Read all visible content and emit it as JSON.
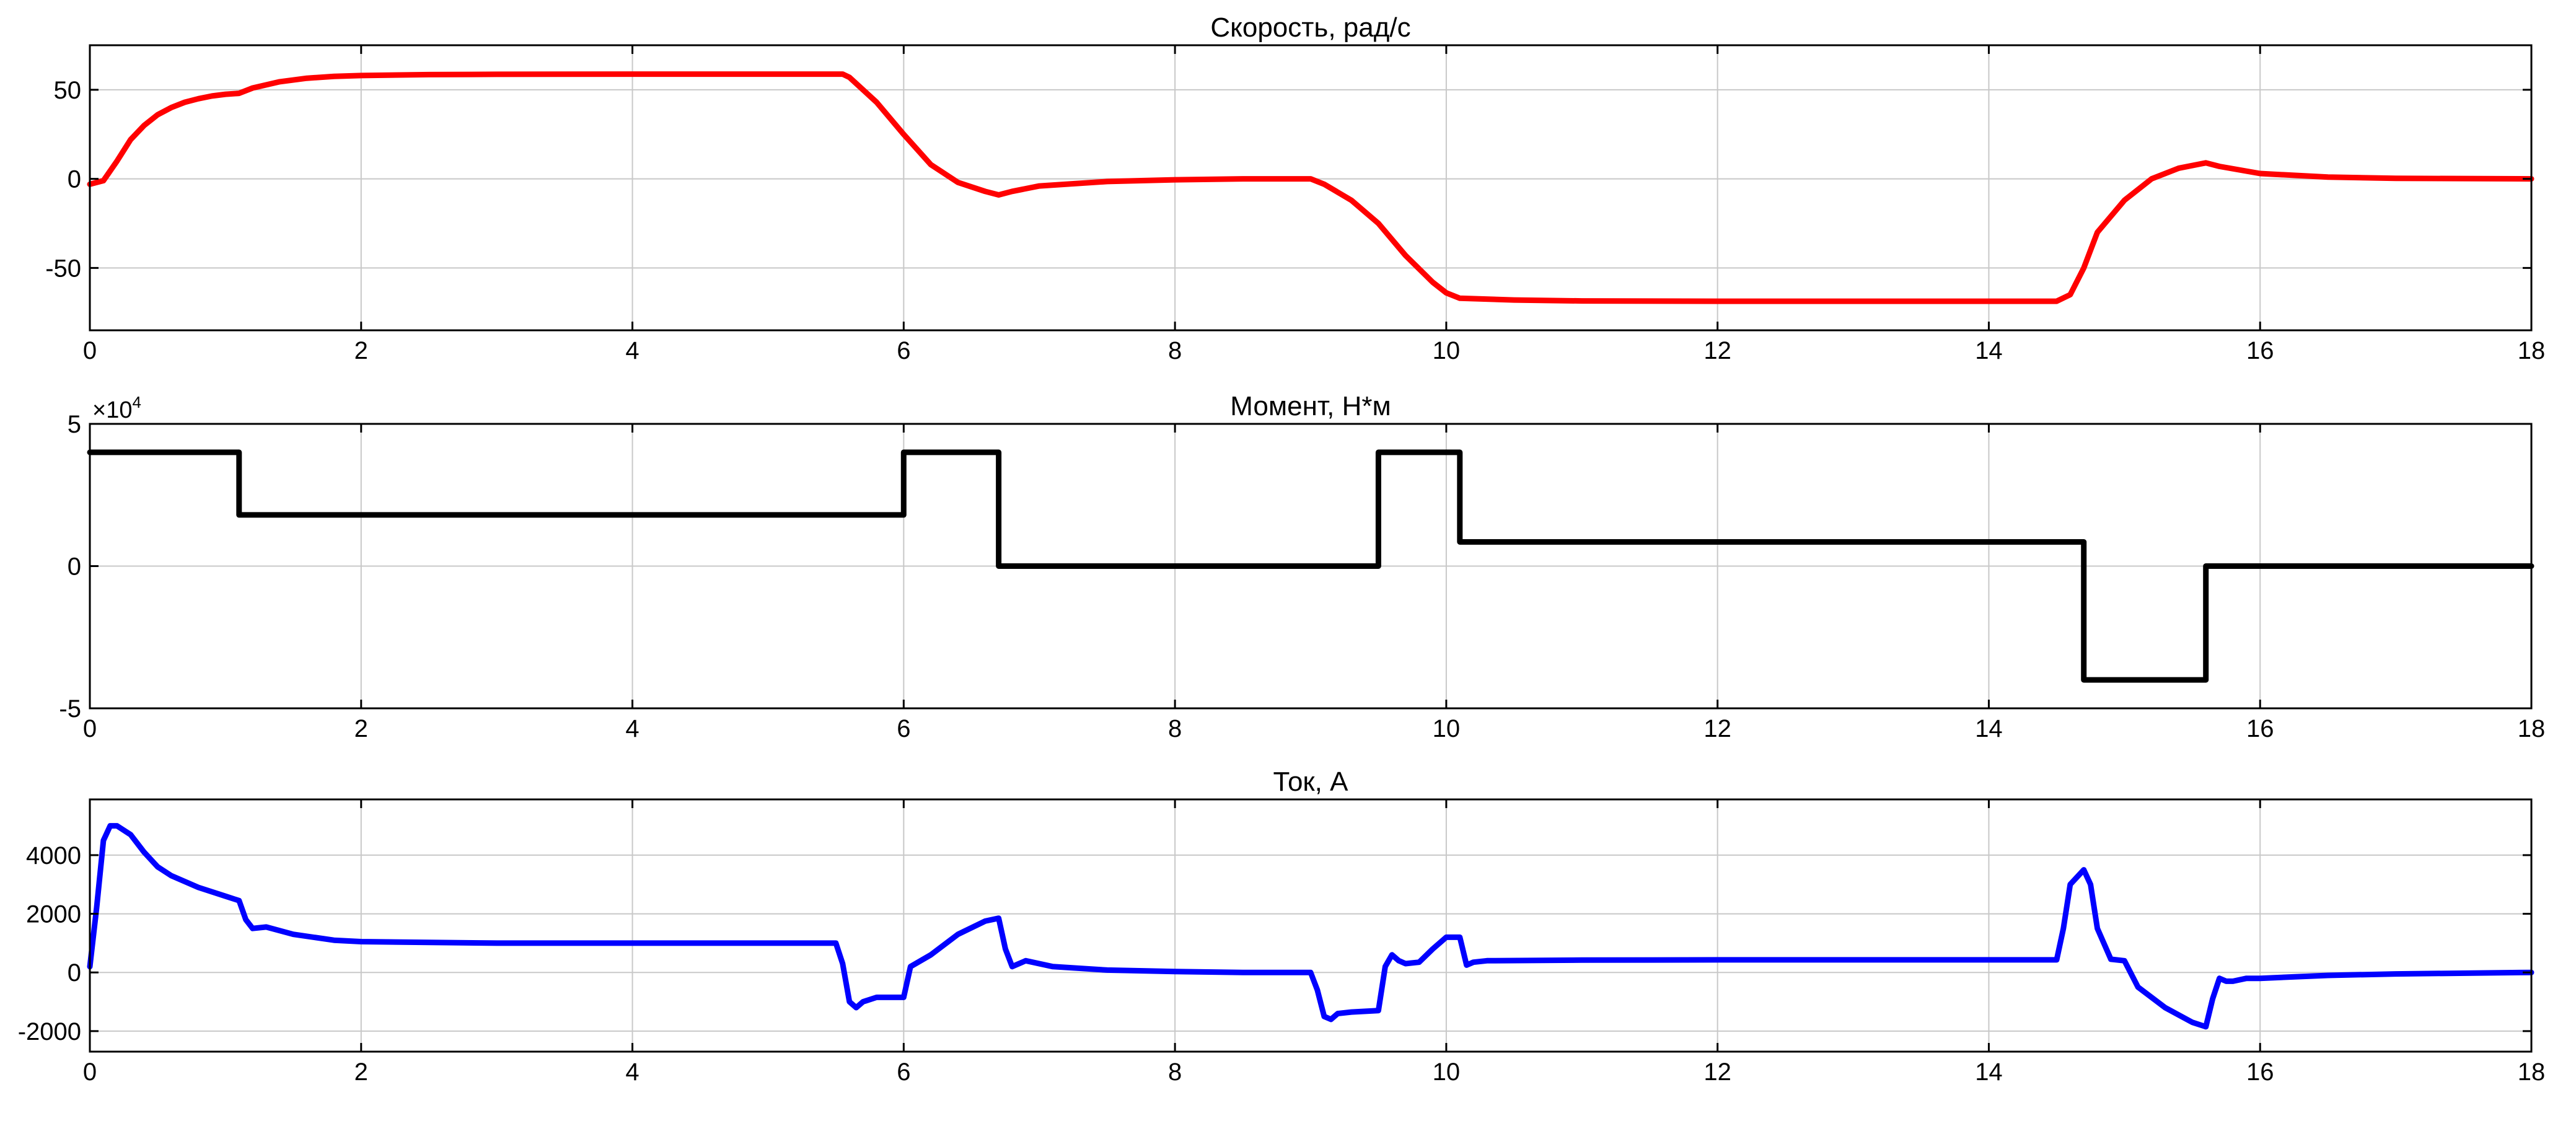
{
  "chart_data": [
    {
      "type": "line",
      "title": "Скорость, рад/с",
      "xlim": [
        0,
        18
      ],
      "ylim": [
        -85,
        75
      ],
      "xticks": [
        0,
        2,
        4,
        6,
        8,
        10,
        12,
        14,
        16,
        18
      ],
      "yticks": [
        -50,
        0,
        50
      ],
      "grid": true,
      "color": "#ff0000",
      "series": [
        {
          "x": [
            0,
            0.05,
            0.1,
            0.2,
            0.3,
            0.4,
            0.5,
            0.6,
            0.7,
            0.8,
            0.9,
            1.0,
            1.1,
            1.2,
            1.4,
            1.6,
            1.8,
            2.0,
            2.5,
            3.0,
            4.0,
            5.0,
            5.55,
            5.6,
            5.8,
            6.0,
            6.2,
            6.4,
            6.6,
            6.7,
            6.8,
            7.0,
            7.5,
            8.0,
            8.5,
            9.0,
            9.1,
            9.3,
            9.5,
            9.7,
            9.9,
            10.0,
            10.1,
            10.5,
            11.0,
            12.0,
            13.0,
            14.0,
            14.5,
            14.6,
            14.7,
            14.8,
            15.0,
            15.2,
            15.4,
            15.6,
            15.7,
            16.0,
            16.5,
            17.0,
            18.0
          ],
          "y": [
            -3,
            -2,
            -1,
            10,
            22,
            30,
            36,
            40,
            43,
            45,
            46.5,
            47.5,
            48,
            51,
            54.5,
            56.5,
            57.5,
            58,
            58.5,
            58.7,
            58.8,
            58.8,
            58.8,
            57,
            43,
            25,
            8,
            -2,
            -7,
            -9,
            -7,
            -4,
            -1.5,
            -0.5,
            0,
            0,
            -3,
            -12,
            -25,
            -43,
            -58,
            -64,
            -67,
            -68,
            -68.5,
            -68.7,
            -68.7,
            -68.7,
            -68.7,
            -65,
            -50,
            -30,
            -12,
            0,
            6,
            9,
            7,
            3,
            1,
            0.3,
            0
          ]
        }
      ]
    },
    {
      "type": "line",
      "title": "Момент, Н*м",
      "xlim": [
        0,
        18
      ],
      "ylim": [
        -50000,
        50000
      ],
      "xticks": [
        0,
        2,
        4,
        6,
        8,
        10,
        12,
        14,
        16,
        18
      ],
      "yticks": [
        -50000,
        0,
        50000
      ],
      "ytick_labels": [
        "-5",
        "0",
        "5"
      ],
      "exponent_label": "×10",
      "exponent_sup": "4",
      "grid": true,
      "color": "#000000",
      "series": [
        {
          "x": [
            0,
            1.1,
            1.1,
            6.0,
            6.0,
            6.7,
            6.7,
            9.5,
            9.5,
            10.1,
            10.1,
            14.7,
            14.7,
            15.6,
            15.6,
            18.0
          ],
          "y": [
            40000,
            40000,
            18000,
            18000,
            40000,
            40000,
            0,
            0,
            40000,
            40000,
            8500,
            8500,
            -40000,
            -40000,
            0,
            0
          ]
        }
      ]
    },
    {
      "type": "line",
      "title": "Ток, А",
      "xlim": [
        0,
        18
      ],
      "ylim": [
        -2700,
        5900
      ],
      "xticks": [
        0,
        2,
        4,
        6,
        8,
        10,
        12,
        14,
        16,
        18
      ],
      "yticks": [
        -2000,
        0,
        2000,
        4000
      ],
      "grid": true,
      "color": "#0000ff",
      "series": [
        {
          "x": [
            0,
            0.05,
            0.1,
            0.15,
            0.2,
            0.3,
            0.4,
            0.5,
            0.6,
            0.8,
            1.0,
            1.1,
            1.15,
            1.2,
            1.3,
            1.5,
            1.8,
            2.0,
            3.0,
            4.0,
            5.0,
            5.5,
            5.55,
            5.6,
            5.65,
            5.7,
            5.8,
            6.0,
            6.05,
            6.2,
            6.4,
            6.6,
            6.7,
            6.75,
            6.8,
            6.85,
            6.9,
            7.1,
            7.5,
            8.0,
            8.5,
            9.0,
            9.05,
            9.1,
            9.15,
            9.2,
            9.3,
            9.5,
            9.55,
            9.6,
            9.65,
            9.7,
            9.8,
            9.9,
            10.0,
            10.1,
            10.15,
            10.2,
            10.3,
            11.0,
            12.0,
            13.0,
            14.0,
            14.5,
            14.55,
            14.6,
            14.7,
            14.75,
            14.8,
            14.9,
            15.0,
            15.1,
            15.3,
            15.5,
            15.6,
            15.65,
            15.7,
            15.75,
            15.8,
            15.9,
            16.0,
            16.5,
            17.0,
            18.0
          ],
          "y": [
            200,
            2200,
            4500,
            5000,
            5000,
            4700,
            4100,
            3600,
            3300,
            2900,
            2600,
            2450,
            1800,
            1500,
            1550,
            1300,
            1100,
            1050,
            1000,
            1000,
            1000,
            1000,
            300,
            -1000,
            -1200,
            -1000,
            -850,
            -850,
            200,
            600,
            1300,
            1750,
            1850,
            800,
            200,
            300,
            400,
            200,
            80,
            30,
            0,
            0,
            -600,
            -1500,
            -1600,
            -1400,
            -1350,
            -1300,
            200,
            600,
            400,
            300,
            350,
            800,
            1200,
            1200,
            250,
            350,
            400,
            420,
            430,
            430,
            430,
            430,
            1500,
            3000,
            3500,
            3000,
            1500,
            450,
            400,
            -500,
            -1200,
            -1700,
            -1850,
            -900,
            -200,
            -300,
            -300,
            -200,
            -200,
            -100,
            -50,
            0
          ]
        }
      ]
    }
  ]
}
